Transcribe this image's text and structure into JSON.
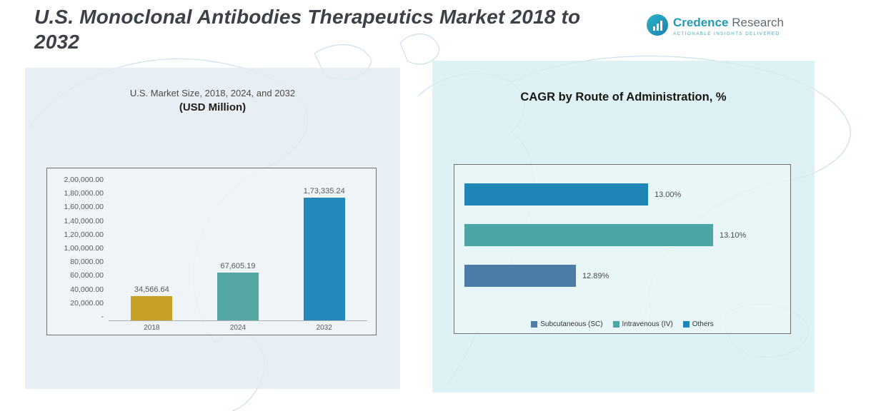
{
  "header": {
    "title_line1": "U.S. Monoclonal Antibodies Therapeutics Market 2018 to",
    "title_line2": "2032"
  },
  "logo": {
    "icon": "bar-chart-circle-icon",
    "brand_word1": "Credence",
    "brand_word2": "Research",
    "tagline": "Actionable Insights Delivered",
    "brand_color": "#1d9cb8"
  },
  "left_panel": {
    "subtitle": "U.S. Market Size, 2018, 2024, and 2032",
    "unit_label": "(USD Million)"
  },
  "right_panel": {
    "title": "CAGR by Route of Administration, %"
  },
  "chart_data": [
    {
      "type": "bar",
      "orientation": "vertical",
      "title": "U.S. Market Size, 2018, 2024, and 2032 (USD Million)",
      "categories": [
        "2018",
        "2024",
        "2032"
      ],
      "values": [
        34566.64,
        67605.19,
        173335.24
      ],
      "bars": [
        {
          "category": "2018",
          "value": 34566.64,
          "label": "34,566.64",
          "color": "#c79f24"
        },
        {
          "category": "2024",
          "value": 67605.19,
          "label": "67,605.19",
          "color": "#55a7a3"
        },
        {
          "category": "2032",
          "value": 173335.24,
          "label": "1,73,335.24",
          "color": "#2289ba"
        }
      ],
      "ylim": [
        0,
        200000
      ],
      "ytick_labels": [
        "2,00,000.00",
        "1,80,000.00",
        "1,60,000.00",
        "1,40,000.00",
        "1,20,000.00",
        "1,00,000.00",
        "80,000.00",
        "60,000.00",
        "40,000.00",
        "20,000.00",
        "-"
      ],
      "grid": false,
      "legend_position": "none"
    },
    {
      "type": "bar",
      "orientation": "horizontal",
      "title": "CAGR by Route of Administration, %",
      "categories": [
        "Subcutaneous (SC)",
        "Intravenous (IV)",
        "Others"
      ],
      "values": [
        12.89,
        13.1,
        13.0
      ],
      "bars": [
        {
          "category": "Others",
          "value": 13.0,
          "label": "13.00%",
          "color": "#1f86b8"
        },
        {
          "category": "Intravenous (IV)",
          "value": 13.1,
          "label": "13.10%",
          "color": "#4ba5a5"
        },
        {
          "category": "Subcutaneous (SC)",
          "value": 12.89,
          "label": "12.89%",
          "color": "#4d7da7"
        }
      ],
      "xlim": [
        12.72,
        13.2
      ],
      "legend": [
        {
          "label": "Subcutaneous (SC)",
          "color": "#4d7da7"
        },
        {
          "label": "Intravenous (IV)",
          "color": "#4ba5a5"
        },
        {
          "label": "Others",
          "color": "#1f86b8"
        }
      ],
      "legend_position": "bottom",
      "grid": false
    }
  ]
}
